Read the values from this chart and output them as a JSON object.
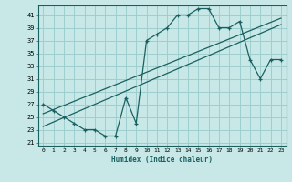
{
  "xlabel": "Humidex (Indice chaleur)",
  "ylabel": "",
  "bg_color": "#c8e8e8",
  "grid_color": "#9dcece",
  "line_color": "#1a6060",
  "xlim": [
    -0.5,
    23.5
  ],
  "ylim": [
    20.5,
    42.5
  ],
  "xticks": [
    0,
    1,
    2,
    3,
    4,
    5,
    6,
    7,
    8,
    9,
    10,
    11,
    12,
    13,
    14,
    15,
    16,
    17,
    18,
    19,
    20,
    21,
    22,
    23
  ],
  "yticks": [
    21,
    23,
    25,
    27,
    29,
    31,
    33,
    35,
    37,
    39,
    41
  ],
  "data_x": [
    0,
    1,
    2,
    3,
    4,
    5,
    6,
    7,
    8,
    9,
    10,
    11,
    12,
    13,
    14,
    15,
    16,
    17,
    18,
    19,
    20,
    21,
    22,
    23
  ],
  "data_y": [
    27,
    26,
    25,
    24,
    23,
    23,
    22,
    22,
    28,
    24,
    37,
    38,
    39,
    41,
    41,
    42,
    42,
    39,
    39,
    40,
    34,
    31,
    34,
    34
  ],
  "trend1_x": [
    0,
    23
  ],
  "trend1_y": [
    25.5,
    40.5
  ],
  "trend2_x": [
    0,
    23
  ],
  "trend2_y": [
    23.5,
    39.5
  ]
}
